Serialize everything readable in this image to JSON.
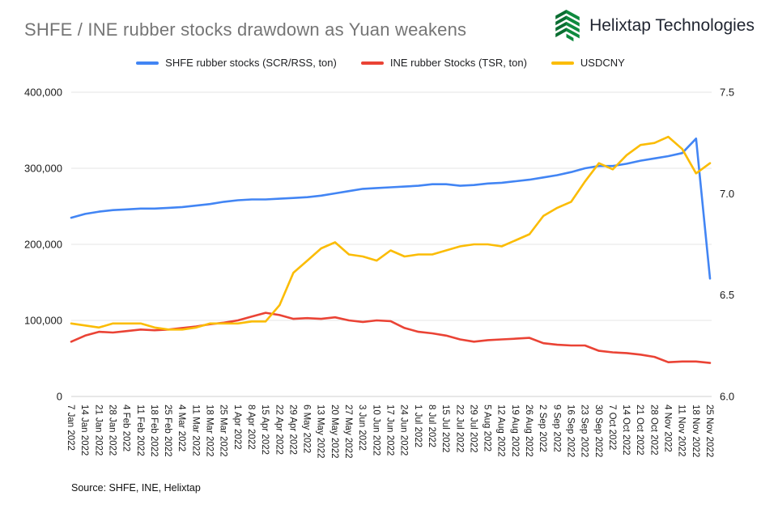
{
  "header": {
    "title": "SHFE / INE rubber stocks drawdown as Yuan weakens",
    "brand": "Helixtap Technologies"
  },
  "legend": [
    {
      "label": "SHFE rubber stocks (SCR/RSS, ton)",
      "color": "#4285f4"
    },
    {
      "label": "INE rubber Stocks (TSR, ton)",
      "color": "#ea4335"
    },
    {
      "label": "USDCNY",
      "color": "#fbbc04"
    }
  ],
  "source": "Source: SHFE, INE, Helixtap",
  "chart_data": {
    "type": "line",
    "title": "SHFE / INE rubber stocks drawdown as Yuan weakens",
    "grid": true,
    "legend_position": "top",
    "x": [
      "7 Jan 2022",
      "14 Jan 2022",
      "21 Jan 2022",
      "28 Jan 2022",
      "4 Feb 2022",
      "11 Feb 2022",
      "18 Feb 2022",
      "25 Feb 2022",
      "4 Mar 2022",
      "11 Mar 2022",
      "18 Mar 2022",
      "25 Mar 2022",
      "1 Apr 2022",
      "8 Apr 2022",
      "15 Apr 2022",
      "22 Apr 2022",
      "29 Apr 2022",
      "6 May 2022",
      "13 May 2022",
      "20 May 2022",
      "27 May 2022",
      "3 Jun 2022",
      "10 Jun 2022",
      "17 Jun 2022",
      "24 Jun 2022",
      "1 Jul 2022",
      "8 Jul 2022",
      "15 Jul 2022",
      "22 Jul 2022",
      "29 Jul 2022",
      "5 Aug 2022",
      "12 Aug 2022",
      "19 Aug 2022",
      "26 Aug 2022",
      "2 Sep 2022",
      "9 Sep 2022",
      "16 Sep 2022",
      "23 Sep 2022",
      "30 Sep 2022",
      "7 Oct 2022",
      "14 Oct 2022",
      "21 Oct 2022",
      "28 Oct 2022",
      "4 Nov 2022",
      "11 Nov 2022",
      "18 Nov 2022",
      "25 Nov 2022"
    ],
    "left_axis": {
      "min": 0,
      "max": 400000,
      "ticks": [
        0,
        100000,
        200000,
        300000,
        400000
      ]
    },
    "right_axis": {
      "min": 6.0,
      "max": 7.5,
      "ticks": [
        6.0,
        6.5,
        7.0,
        7.5
      ]
    },
    "series": [
      {
        "name": "SHFE rubber stocks (SCR/RSS, ton)",
        "color": "#4285f4",
        "axis": "left",
        "values": [
          235000,
          240000,
          243000,
          245000,
          246000,
          247000,
          247000,
          248000,
          249000,
          251000,
          253000,
          256000,
          258000,
          259000,
          259000,
          260000,
          261000,
          262000,
          264000,
          267000,
          270000,
          273000,
          274000,
          275000,
          276000,
          277000,
          279000,
          279000,
          277000,
          278000,
          280000,
          281000,
          283000,
          285000,
          288000,
          291000,
          295000,
          300000,
          303000,
          303000,
          306000,
          310000,
          313000,
          316000,
          320000,
          339000,
          155000
        ]
      },
      {
        "name": "INE rubber Stocks (TSR, ton)",
        "color": "#ea4335",
        "axis": "left",
        "values": [
          72000,
          80000,
          85000,
          84000,
          86000,
          88000,
          87000,
          88000,
          90000,
          92000,
          95000,
          97000,
          100000,
          105000,
          110000,
          107000,
          102000,
          103000,
          102000,
          104000,
          100000,
          98000,
          100000,
          99000,
          90000,
          85000,
          83000,
          80000,
          75000,
          72000,
          74000,
          75000,
          76000,
          77000,
          70000,
          68000,
          67000,
          67000,
          60000,
          58000,
          57000,
          55000,
          52000,
          45000,
          46000,
          46000,
          44000
        ]
      },
      {
        "name": "USDCNY",
        "color": "#fbbc04",
        "axis": "right",
        "values": [
          6.36,
          6.35,
          6.34,
          6.36,
          6.36,
          6.36,
          6.34,
          6.33,
          6.33,
          6.34,
          6.36,
          6.36,
          6.36,
          6.37,
          6.37,
          6.45,
          6.61,
          6.67,
          6.73,
          6.76,
          6.7,
          6.69,
          6.67,
          6.72,
          6.69,
          6.7,
          6.7,
          6.72,
          6.74,
          6.75,
          6.75,
          6.74,
          6.77,
          6.8,
          6.89,
          6.93,
          6.96,
          7.06,
          7.15,
          7.12,
          7.19,
          7.24,
          7.25,
          7.28,
          7.22,
          7.1,
          7.15
        ]
      }
    ]
  }
}
